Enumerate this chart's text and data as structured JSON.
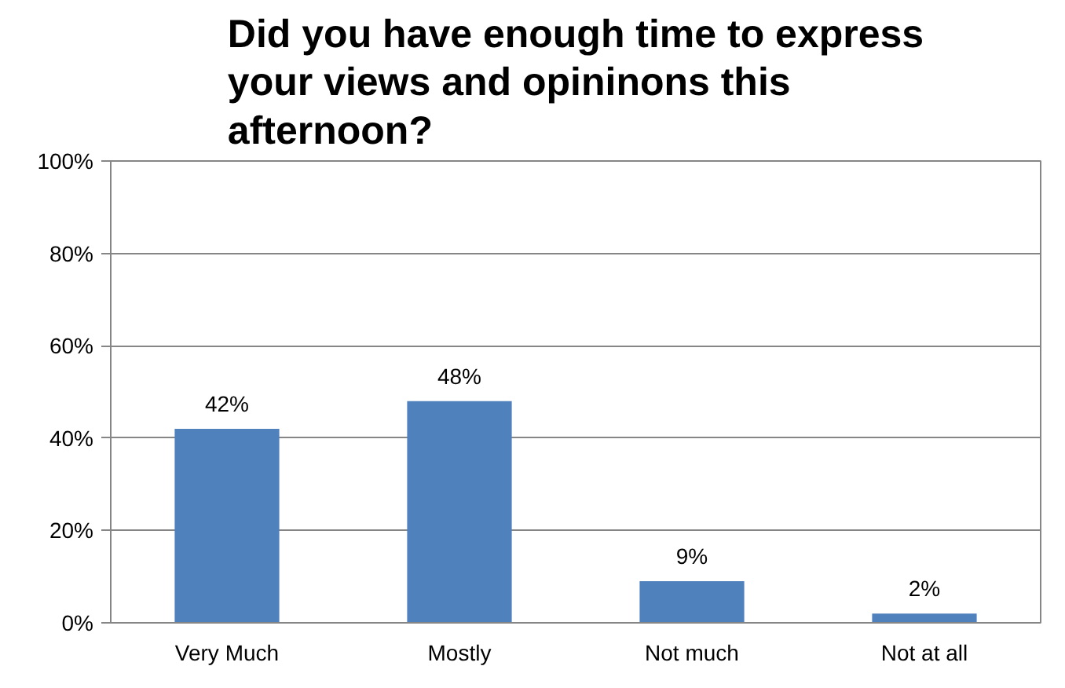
{
  "chart_data": {
    "type": "bar",
    "title": "Did you have enough time to express your views and opininons this afternoon?",
    "categories": [
      "Very Much",
      "Mostly",
      "Not much",
      "Not at all"
    ],
    "values": [
      42,
      48,
      9,
      2
    ],
    "color": "#4f81bd",
    "data_labels": true,
    "value_labels": [
      "42%",
      "48%",
      "9%",
      "2%"
    ],
    "ylim": [
      0,
      100
    ],
    "yticks": [
      {
        "value": 0,
        "label": "0%"
      },
      {
        "value": 20,
        "label": "20%"
      },
      {
        "value": 40,
        "label": "40%"
      },
      {
        "value": 60,
        "label": "60%"
      },
      {
        "value": 80,
        "label": "80%"
      },
      {
        "value": 100,
        "label": "100%"
      }
    ],
    "grid": "y"
  }
}
